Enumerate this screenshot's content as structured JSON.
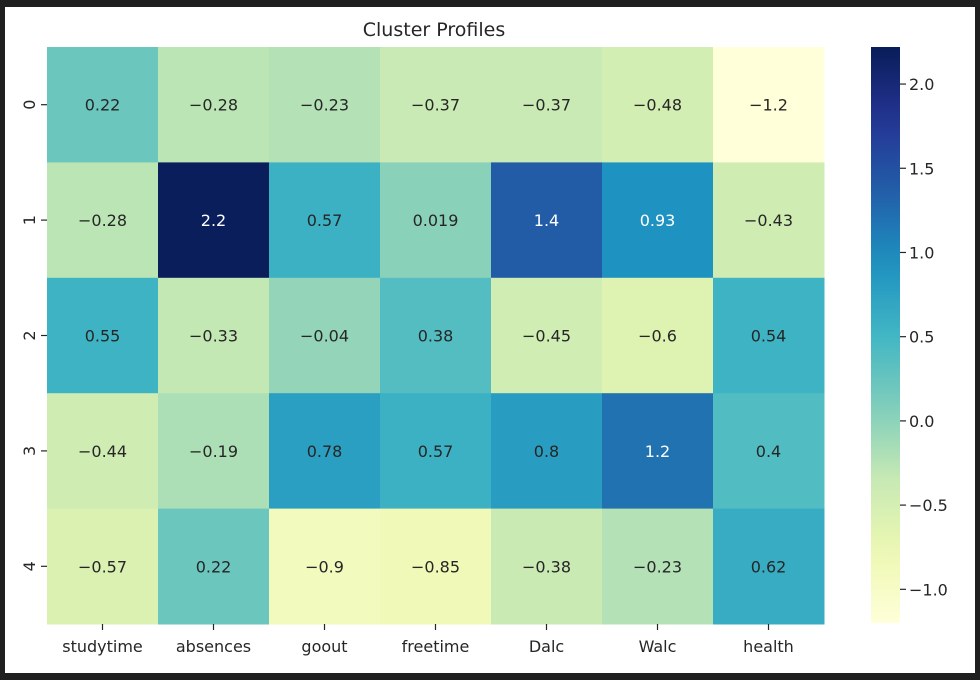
{
  "chart_data": {
    "type": "heatmap",
    "title": "Cluster Profiles",
    "xlabel": "",
    "ylabel": "",
    "columns": [
      "studytime",
      "absences",
      "goout",
      "freetime",
      "Dalc",
      "Walc",
      "health"
    ],
    "rows": [
      "0",
      "1",
      "2",
      "3",
      "4"
    ],
    "values": [
      [
        0.22,
        -0.28,
        -0.23,
        -0.37,
        -0.37,
        -0.48,
        -1.2
      ],
      [
        -0.28,
        2.2,
        0.57,
        0.019,
        1.4,
        0.93,
        -0.43
      ],
      [
        0.55,
        -0.33,
        -0.04,
        0.38,
        -0.45,
        -0.6,
        0.54
      ],
      [
        -0.44,
        -0.19,
        0.78,
        0.57,
        0.8,
        1.2,
        0.4
      ],
      [
        -0.57,
        0.22,
        -0.9,
        -0.85,
        -0.38,
        -0.23,
        0.62
      ]
    ],
    "colormap": "YlGnBu",
    "vmin": -1.2,
    "vmax": 2.22,
    "colorbar": {
      "ticks": [
        2.0,
        1.5,
        1.0,
        0.5,
        0.0,
        -0.5,
        -1.0
      ],
      "tick_labels": [
        "2.0",
        "1.5",
        "1.0",
        "0.5",
        "0.0",
        "−0.5",
        "−1.0"
      ]
    },
    "annotations": true,
    "grid": false
  }
}
